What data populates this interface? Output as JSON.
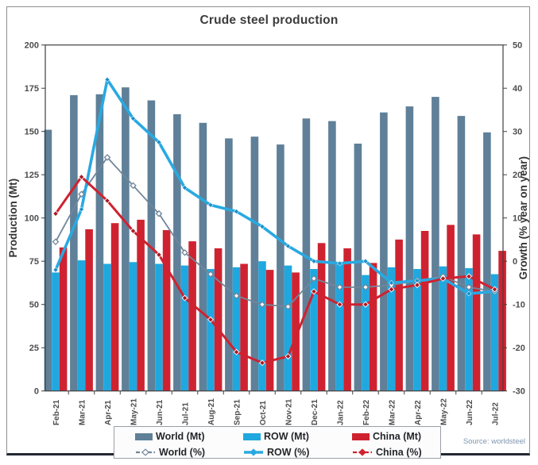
{
  "title": "Crude steel production",
  "source": "Source: worldsteel",
  "left_axis": {
    "label": "Production (Mt)",
    "min": 0,
    "max": 200,
    "step": 25
  },
  "right_axis": {
    "label": "Growth (% year on year)",
    "min": -30,
    "max": 50,
    "step": 10
  },
  "colors": {
    "world_bar": "#5f8098",
    "row_bar": "#1fa8e0",
    "china_bar": "#cf2230",
    "world_line": "#71869a",
    "row_line": "#29a9e1",
    "china_line": "#cf2230",
    "china_marker": "#a81a26",
    "row_marker": "#1b8ec6",
    "axis": "#404040",
    "tick_text": "#4d4d4d",
    "title_text": "#3c3c3c",
    "source_text": "#7e95ad"
  },
  "legend": {
    "items": [
      {
        "label": "World (Mt)",
        "glyph": "bar",
        "color_key": "world_bar"
      },
      {
        "label": "ROW (Mt)",
        "glyph": "bar",
        "color_key": "row_bar"
      },
      {
        "label": "China (Mt)",
        "glyph": "bar",
        "color_key": "china_bar"
      },
      {
        "label": "World (%)",
        "glyph": "line",
        "color_key": "world_line"
      },
      {
        "label": "ROW (%)",
        "glyph": "line",
        "color_key": "row_line"
      },
      {
        "label": "China (%)",
        "glyph": "line",
        "color_key": "china_line"
      }
    ]
  },
  "chart_data": {
    "type": "bar",
    "subtype": "bar-line combo, dual axis",
    "title": "Crude steel production",
    "categories": [
      "Feb-21",
      "Mar-21",
      "Apr-21",
      "May-21",
      "Jun-21",
      "Jul-21",
      "Aug-21",
      "Sep-21",
      "Oct-21",
      "Nov-21",
      "Dec-21",
      "Jan-22",
      "Feb-22",
      "Mar-22",
      "Apr-22",
      "May-22",
      "Jun-22",
      "Jul-22"
    ],
    "left_ylabel": "Production (Mt)",
    "right_ylabel": "Growth (% year on year)",
    "left_ylim": [
      0,
      200
    ],
    "right_ylim": [
      -30,
      50
    ],
    "grid": false,
    "legend_position": "bottom",
    "series": [
      {
        "name": "World (Mt)",
        "type": "bar",
        "axis": "left",
        "values": [
          151,
          171,
          171.5,
          175.5,
          168,
          160,
          155,
          146,
          147,
          142.5,
          157.5,
          156,
          143,
          161,
          164.5,
          170,
          159,
          149.5
        ]
      },
      {
        "name": "ROW (Mt)",
        "type": "bar",
        "axis": "left",
        "values": [
          68.5,
          75.5,
          73.5,
          74.5,
          73.5,
          72.5,
          70.5,
          71.5,
          75,
          72.5,
          70.5,
          73,
          67,
          71.5,
          70.5,
          72,
          71,
          67.5
        ]
      },
      {
        "name": "China (Mt)",
        "type": "bar",
        "axis": "left",
        "values": [
          83,
          93.5,
          97,
          99,
          93,
          86.5,
          82.5,
          73.5,
          70,
          68.5,
          85.5,
          82.5,
          74,
          87.5,
          92.5,
          96,
          90.5,
          81
        ]
      },
      {
        "name": "World (%)",
        "type": "line",
        "axis": "right",
        "values": [
          4.5,
          15.5,
          24,
          17.5,
          11,
          2,
          -3,
          -8,
          -10,
          -10.5,
          -4,
          -6,
          -6,
          -5.5,
          -4.5,
          -3.5,
          -6,
          -7
        ]
      },
      {
        "name": "ROW (%)",
        "type": "line",
        "axis": "right",
        "values": [
          -2,
          12,
          42,
          33,
          27.5,
          17,
          13,
          11.5,
          8,
          3.5,
          0,
          -0.5,
          0,
          -5,
          -4.5,
          -4,
          -7.5,
          -7
        ]
      },
      {
        "name": "China (%)",
        "type": "line",
        "axis": "right",
        "values": [
          11,
          19.5,
          14,
          7,
          1.5,
          -8.5,
          -13.5,
          -21,
          -23.5,
          -22,
          -7,
          -10,
          -10,
          -6.5,
          -5.5,
          -4,
          -3.5,
          -6.5
        ]
      }
    ]
  }
}
